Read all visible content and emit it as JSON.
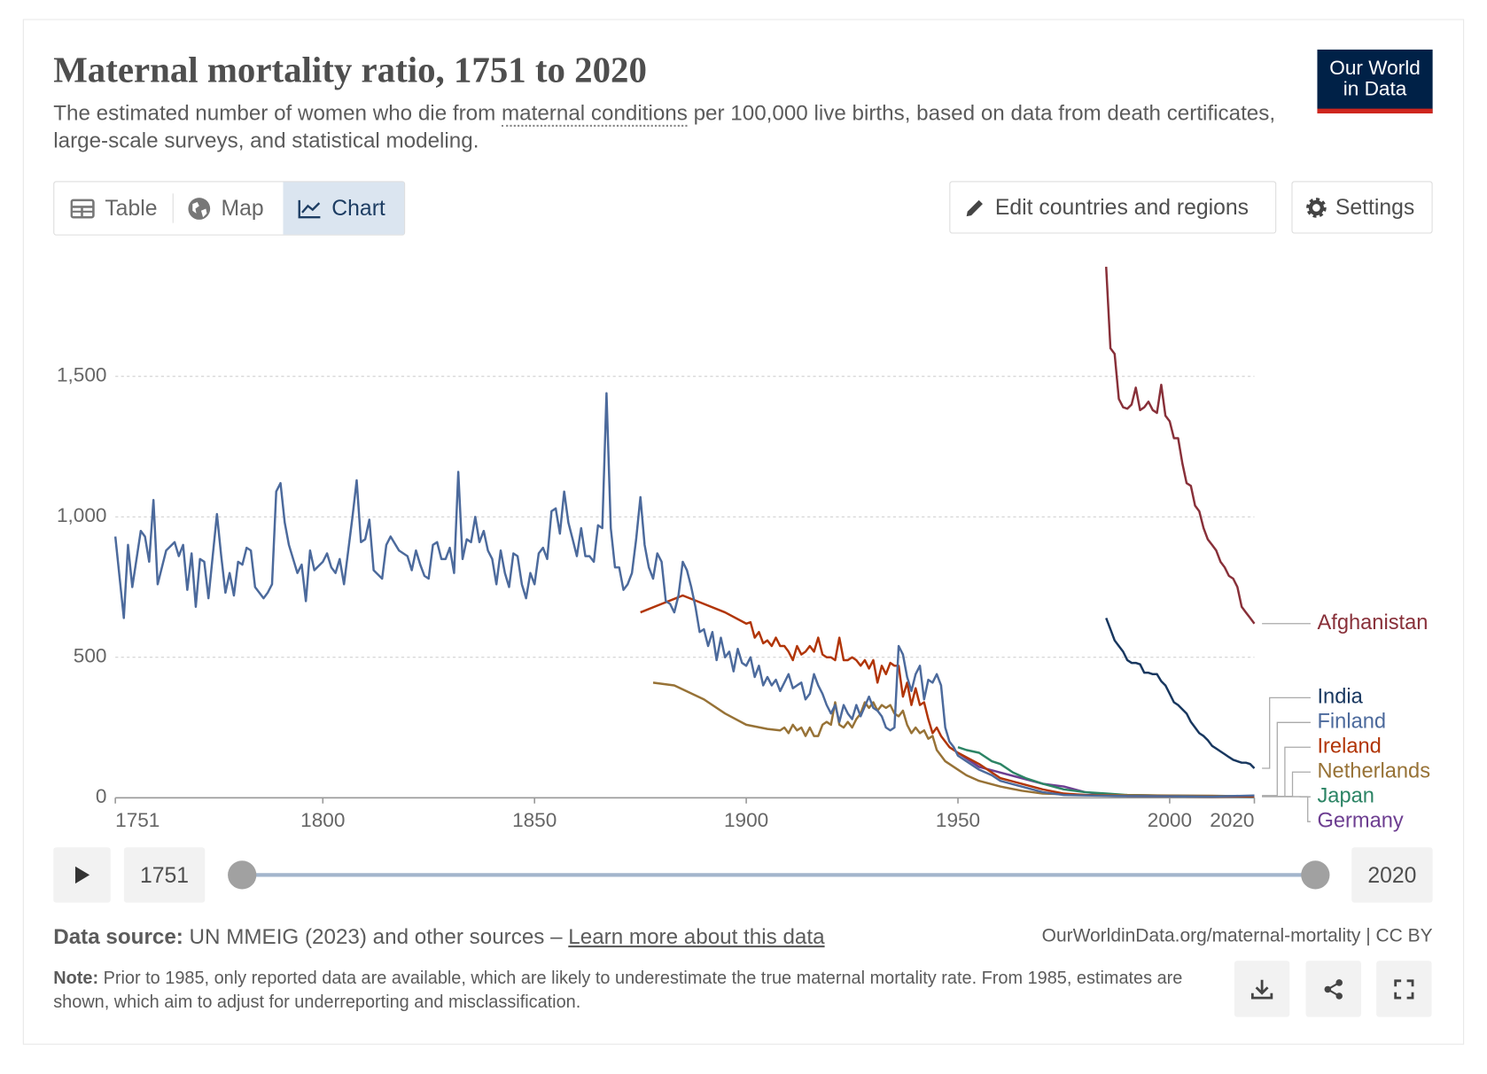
{
  "header": {
    "title": "Maternal mortality ratio, 1751 to 2020",
    "subtitle_start": "The estimated number of women who die from ",
    "subtitle_link": "maternal conditions",
    "subtitle_end": " per 100,000 live births, based on data from death certificates, large-scale surveys, and statistical modeling.",
    "logo": [
      "Our World",
      "in Data"
    ]
  },
  "tabs": [
    "Table",
    "Map",
    "Chart"
  ],
  "buttons": [
    "Edit countries and regions",
    "Settings"
  ],
  "timeline": {
    "start": "1751",
    "end": "2020"
  },
  "footer": {
    "source_label": "Data source:",
    "source": " UN MMEIG (2023) and other sources – ",
    "source_link": "Learn more about this data",
    "url": "OurWorldinData.org/maternal-mortality | CC BY",
    "note_label": "Note:",
    "note": " Prior to 1985, only reported data are available, which are likely to underestimate the true maternal mortality rate. From 1985, estimates are shown, which aim to adjust for underreporting and misclassification."
  },
  "chart_data": {
    "type": "line",
    "xlim": [
      1751,
      2020
    ],
    "xticks": [
      1751,
      1800,
      1850,
      1900,
      1950,
      2000,
      2020
    ],
    "ylim": [
      0,
      1900
    ],
    "yticks": [
      0,
      500,
      {
        "value": 1000,
        "label": "1,000"
      },
      {
        "value": 1500,
        "label": "1,500"
      }
    ],
    "grid": true,
    "series": [
      {
        "name": "Afghanistan",
        "color": "#883039",
        "x": [
          1985,
          1986,
          1987,
          1988,
          1989,
          1990,
          1991,
          1992,
          1993,
          1994,
          1995,
          1996,
          1997,
          1998,
          1999,
          2000,
          2001,
          2002,
          2003,
          2004,
          2005,
          2006,
          2007,
          2008,
          2009,
          2010,
          2011,
          2012,
          2013,
          2014,
          2015,
          2016,
          2017,
          2018,
          2019,
          2020
        ],
        "values": [
          1890,
          1600,
          1580,
          1420,
          1390,
          1385,
          1400,
          1460,
          1380,
          1390,
          1410,
          1380,
          1370,
          1470,
          1360,
          1340,
          1280,
          1280,
          1190,
          1120,
          1110,
          1040,
          1020,
          960,
          920,
          900,
          880,
          840,
          820,
          790,
          780,
          750,
          680,
          660,
          640,
          620
        ]
      },
      {
        "name": "India",
        "color": "#18375f",
        "x": [
          1985,
          1986,
          1987,
          1988,
          1989,
          1990,
          1991,
          1992,
          1993,
          1994,
          1995,
          1996,
          1997,
          1998,
          1999,
          2000,
          2001,
          2002,
          2003,
          2004,
          2005,
          2006,
          2007,
          2008,
          2009,
          2010,
          2011,
          2012,
          2013,
          2014,
          2015,
          2016,
          2017,
          2018,
          2019,
          2020
        ],
        "values": [
          640,
          600,
          560,
          540,
          520,
          490,
          480,
          480,
          475,
          445,
          445,
          440,
          440,
          415,
          400,
          370,
          340,
          330,
          315,
          300,
          270,
          250,
          230,
          220,
          205,
          185,
          175,
          165,
          155,
          145,
          135,
          130,
          125,
          125,
          120,
          105
        ]
      },
      {
        "name": "Finland",
        "color": "#4c6a9c",
        "x": [
          1751,
          1753,
          1754,
          1755,
          1757,
          1758,
          1759,
          1760,
          1761,
          1763,
          1765,
          1766,
          1767,
          1768,
          1769,
          1770,
          1771,
          1772,
          1773,
          1775,
          1776,
          1777,
          1778,
          1779,
          1780,
          1781,
          1782,
          1783,
          1784,
          1786,
          1787,
          1788,
          1789,
          1790,
          1791,
          1792,
          1794,
          1795,
          1796,
          1797,
          1798,
          1800,
          1801,
          1802,
          1803,
          1804,
          1805,
          1807,
          1808,
          1809,
          1810,
          1811,
          1812,
          1814,
          1815,
          1816,
          1818,
          1820,
          1821,
          1822,
          1823,
          1824,
          1825,
          1826,
          1827,
          1828,
          1829,
          1830,
          1831,
          1832,
          1833,
          1834,
          1835,
          1836,
          1837,
          1838,
          1839,
          1840,
          1841,
          1842,
          1843,
          1844,
          1845,
          1846,
          1847,
          1848,
          1849,
          1850,
          1851,
          1852,
          1853,
          1854,
          1855,
          1856,
          1857,
          1858,
          1859,
          1860,
          1861,
          1862,
          1863,
          1864,
          1865,
          1866,
          1867,
          1868,
          1869,
          1870,
          1871,
          1872,
          1873,
          1874,
          1875,
          1876,
          1877,
          1878,
          1879,
          1880,
          1881,
          1882,
          1883,
          1884,
          1885,
          1886,
          1887,
          1888,
          1889,
          1890,
          1891,
          1892,
          1893,
          1894,
          1895,
          1896,
          1897,
          1898,
          1899,
          1900,
          1901,
          1902,
          1903,
          1904,
          1905,
          1906,
          1907,
          1908,
          1909,
          1910,
          1911,
          1912,
          1913,
          1914,
          1915,
          1916,
          1917,
          1918,
          1919,
          1920,
          1921,
          1922,
          1923,
          1924,
          1925,
          1926,
          1927,
          1929,
          1930,
          1931,
          1932,
          1933,
          1934,
          1935,
          1936,
          1937,
          1938,
          1939,
          1940,
          1941,
          1942,
          1943,
          1944,
          1945,
          1946,
          1947,
          1948,
          1949,
          1950,
          1952,
          1955,
          1958,
          1960,
          1965,
          1970,
          1975,
          1980,
          1990,
          2000,
          2010,
          2020
        ],
        "values": [
          930,
          640,
          900,
          750,
          950,
          930,
          840,
          1060,
          760,
          880,
          910,
          860,
          900,
          740,
          870,
          680,
          850,
          840,
          710,
          1010,
          860,
          730,
          800,
          720,
          840,
          830,
          890,
          880,
          750,
          710,
          730,
          760,
          1090,
          1120,
          980,
          900,
          800,
          830,
          700,
          880,
          810,
          840,
          870,
          820,
          800,
          850,
          760,
          1000,
          1130,
          910,
          920,
          990,
          810,
          780,
          900,
          930,
          880,
          860,
          810,
          880,
          830,
          790,
          780,
          900,
          910,
          850,
          850,
          890,
          800,
          1160,
          850,
          920,
          910,
          1000,
          910,
          950,
          880,
          850,
          760,
          880,
          800,
          750,
          870,
          860,
          760,
          710,
          800,
          760,
          870,
          890,
          850,
          1020,
          1030,
          940,
          1090,
          980,
          920,
          860,
          960,
          860,
          860,
          840,
          970,
          960,
          1440,
          960,
          820,
          820,
          740,
          760,
          800,
          920,
          1070,
          900,
          820,
          780,
          870,
          840,
          700,
          690,
          660,
          720,
          840,
          810,
          750,
          680,
          590,
          600,
          540,
          590,
          490,
          570,
          500,
          520,
          450,
          530,
          480,
          470,
          500,
          430,
          470,
          400,
          430,
          400,
          420,
          380,
          410,
          440,
          390,
          400,
          410,
          350,
          370,
          440,
          400,
          370,
          330,
          300,
          330,
          270,
          330,
          300,
          280,
          330,
          290,
          360,
          320,
          310,
          290,
          250,
          240,
          250,
          540,
          510,
          430,
          380,
          440,
          470,
          350,
          420,
          410,
          440,
          400,
          250,
          200,
          180,
          150,
          130,
          100,
          80,
          60,
          40,
          20,
          10,
          8,
          6,
          5,
          4,
          8
        ]
      },
      {
        "name": "Ireland",
        "color": "#b13507",
        "x": [
          1875,
          1880,
          1885,
          1890,
          1895,
          1900,
          1901,
          1902,
          1903,
          1904,
          1905,
          1906,
          1907,
          1908,
          1909,
          1910,
          1911,
          1912,
          1913,
          1914,
          1915,
          1916,
          1917,
          1918,
          1919,
          1920,
          1921,
          1922,
          1923,
          1924,
          1925,
          1926,
          1927,
          1928,
          1929,
          1930,
          1931,
          1932,
          1933,
          1934,
          1935,
          1936,
          1937,
          1938,
          1939,
          1940,
          1941,
          1942,
          1943,
          1944,
          1945,
          1946,
          1948,
          1950,
          1955,
          1960,
          1965,
          1970,
          1975,
          1980,
          1990,
          2000,
          2010,
          2020
        ],
        "values": [
          660,
          690,
          720,
          690,
          660,
          620,
          625,
          570,
          590,
          550,
          560,
          540,
          570,
          540,
          540,
          520,
          490,
          540,
          510,
          520,
          540,
          520,
          570,
          510,
          500,
          500,
          490,
          570,
          490,
          490,
          500,
          490,
          470,
          490,
          460,
          490,
          410,
          470,
          440,
          480,
          470,
          470,
          360,
          410,
          330,
          390,
          330,
          340,
          280,
          230,
          250,
          220,
          180,
          160,
          120,
          70,
          50,
          30,
          15,
          10,
          6,
          5,
          4,
          5
        ]
      },
      {
        "name": "Netherlands",
        "color": "#977236",
        "x": [
          1878,
          1883,
          1890,
          1895,
          1900,
          1905,
          1908,
          1909,
          1910,
          1911,
          1912,
          1913,
          1914,
          1915,
          1916,
          1917,
          1918,
          1919,
          1920,
          1921,
          1922,
          1923,
          1924,
          1925,
          1926,
          1927,
          1928,
          1929,
          1930,
          1931,
          1932,
          1933,
          1934,
          1935,
          1936,
          1937,
          1938,
          1939,
          1940,
          1941,
          1942,
          1943,
          1944,
          1945,
          1947,
          1950,
          1952,
          1955,
          1960,
          1965,
          1970,
          1980,
          1990,
          2000,
          2010,
          2020
        ],
        "values": [
          410,
          400,
          350,
          300,
          260,
          245,
          240,
          250,
          230,
          260,
          240,
          250,
          220,
          250,
          220,
          220,
          260,
          270,
          260,
          340,
          260,
          250,
          270,
          250,
          280,
          300,
          340,
          320,
          340,
          310,
          330,
          320,
          330,
          300,
          290,
          310,
          260,
          230,
          250,
          230,
          240,
          210,
          220,
          170,
          130,
          100,
          80,
          60,
          40,
          25,
          15,
          10,
          9,
          8,
          7,
          5
        ]
      },
      {
        "name": "Japan",
        "color": "#2c8465",
        "x": [
          1950,
          1952,
          1955,
          1958,
          1960,
          1963,
          1966,
          1970,
          1975,
          1980,
          1985,
          1990,
          2000,
          2010,
          2020
        ],
        "values": [
          180,
          170,
          160,
          130,
          120,
          90,
          70,
          50,
          30,
          20,
          15,
          10,
          7,
          5,
          4
        ]
      },
      {
        "name": "Germany",
        "color": "#6d3e91",
        "x": [
          1950,
          1955,
          1960,
          1965,
          1970,
          1975,
          1980,
          1985,
          1990,
          2000,
          2010,
          2020
        ],
        "values": [
          160,
          110,
          90,
          70,
          50,
          40,
          20,
          12,
          9,
          7,
          6,
          4
        ]
      }
    ]
  }
}
